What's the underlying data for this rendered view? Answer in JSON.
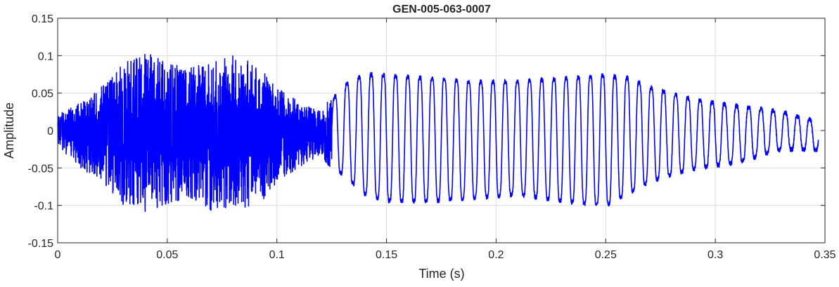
{
  "chart_data": {
    "type": "line",
    "title": "GEN-005-063-0007",
    "xlabel": "Time (s)",
    "ylabel": "Amplitude",
    "xlim": [
      0,
      0.35
    ],
    "ylim": [
      -0.15,
      0.15
    ],
    "xticks": [
      0,
      0.05,
      0.1,
      0.15,
      0.2,
      0.25,
      0.3,
      0.35
    ],
    "xtick_labels": [
      "0",
      "0.05",
      "0.1",
      "0.15",
      "0.2",
      "0.25",
      "0.3",
      "0.35"
    ],
    "yticks": [
      -0.15,
      -0.1,
      -0.05,
      0,
      0.05,
      0.1,
      0.15
    ],
    "ytick_labels": [
      "-0.15",
      "-0.1",
      "-0.05",
      "0",
      "0.05",
      "0.1",
      "0.15"
    ],
    "grid": true,
    "colors": {
      "line": "#0000ff",
      "grid": "#dcdcdc",
      "axes": "#262626"
    },
    "series": [
      {
        "signal_duration_s": 0.347,
        "segments": [
          {
            "kind": "noise-burst",
            "t_start": 0.0,
            "t_end": 0.125,
            "peak_max": 0.106,
            "peak_min": -0.113
          },
          {
            "kind": "oscillation",
            "t_start": 0.125,
            "t_end": 0.347,
            "approx_frequency_hz": 180,
            "peak_max": 0.091,
            "peak_min": -0.117
          }
        ],
        "envelope": [
          {
            "t": 0.0,
            "upper": 0.02,
            "lower": -0.02
          },
          {
            "t": 0.01,
            "upper": 0.04,
            "lower": -0.05
          },
          {
            "t": 0.02,
            "upper": 0.06,
            "lower": -0.07
          },
          {
            "t": 0.03,
            "upper": 0.09,
            "lower": -0.1
          },
          {
            "t": 0.04,
            "upper": 0.106,
            "lower": -0.113
          },
          {
            "t": 0.05,
            "upper": 0.09,
            "lower": -0.1
          },
          {
            "t": 0.06,
            "upper": 0.085,
            "lower": -0.09
          },
          {
            "t": 0.07,
            "upper": 0.09,
            "lower": -0.11
          },
          {
            "t": 0.08,
            "upper": 0.1,
            "lower": -0.1
          },
          {
            "t": 0.09,
            "upper": 0.09,
            "lower": -0.108
          },
          {
            "t": 0.1,
            "upper": 0.06,
            "lower": -0.07
          },
          {
            "t": 0.11,
            "upper": 0.04,
            "lower": -0.05
          },
          {
            "t": 0.12,
            "upper": 0.025,
            "lower": -0.035
          },
          {
            "t": 0.13,
            "upper": 0.07,
            "lower": -0.07
          },
          {
            "t": 0.14,
            "upper": 0.09,
            "lower": -0.1
          },
          {
            "t": 0.15,
            "upper": 0.09,
            "lower": -0.11
          },
          {
            "t": 0.17,
            "upper": 0.085,
            "lower": -0.11
          },
          {
            "t": 0.19,
            "upper": 0.08,
            "lower": -0.105
          },
          {
            "t": 0.21,
            "upper": 0.08,
            "lower": -0.1
          },
          {
            "t": 0.23,
            "upper": 0.085,
            "lower": -0.11
          },
          {
            "t": 0.25,
            "upper": 0.09,
            "lower": -0.117
          },
          {
            "t": 0.26,
            "upper": 0.085,
            "lower": -0.1
          },
          {
            "t": 0.27,
            "upper": 0.07,
            "lower": -0.08
          },
          {
            "t": 0.29,
            "upper": 0.05,
            "lower": -0.06
          },
          {
            "t": 0.31,
            "upper": 0.04,
            "lower": -0.05
          },
          {
            "t": 0.33,
            "upper": 0.03,
            "lower": -0.03
          },
          {
            "t": 0.347,
            "upper": 0.015,
            "lower": -0.03
          }
        ]
      }
    ]
  }
}
